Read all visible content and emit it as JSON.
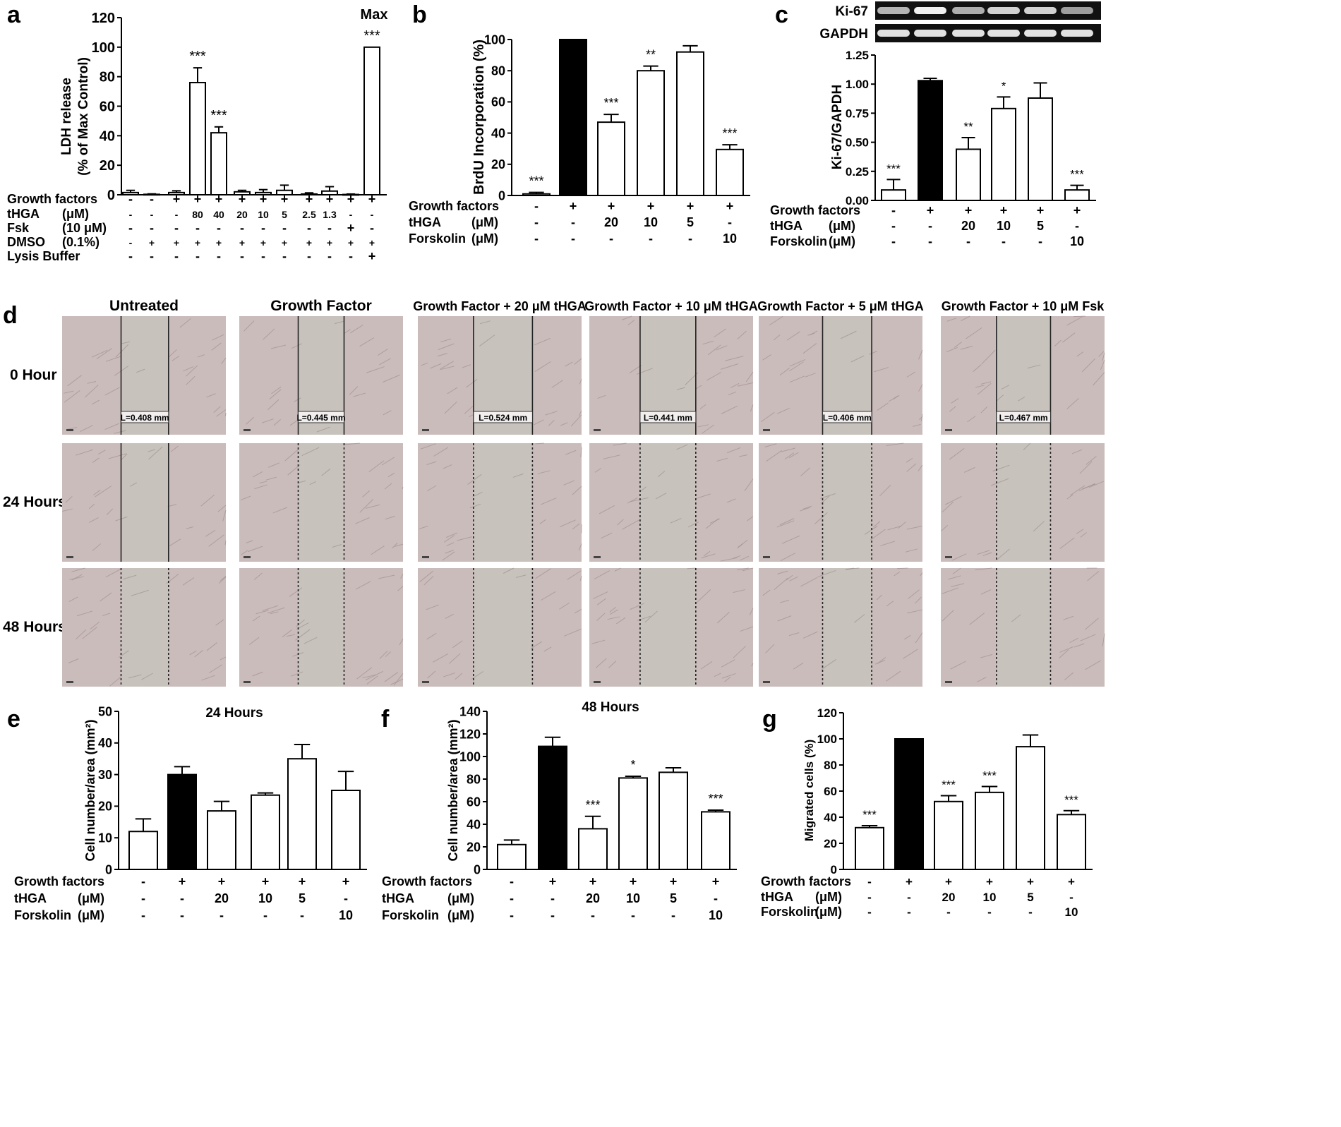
{
  "chart_data": [
    {
      "panel": "a",
      "type": "bar",
      "ylabel_lines": [
        "LDH release",
        "(% of Max Control)"
      ],
      "ylim": [
        0,
        120
      ],
      "yticks": [
        0,
        20,
        40,
        60,
        80,
        100,
        120
      ],
      "values": [
        1.5,
        0.3,
        1.5,
        76,
        42,
        2,
        1.5,
        3,
        0.5,
        2.5,
        0.2,
        100
      ],
      "errors": [
        1.5,
        0.3,
        1.2,
        10,
        4,
        1,
        2,
        3.5,
        0.8,
        3,
        0.3,
        0
      ],
      "fills": [
        "white",
        "white",
        "white",
        "white",
        "white",
        "white",
        "white",
        "white",
        "white",
        "white",
        "white",
        "white"
      ],
      "annotations": [
        "",
        "",
        "",
        "***",
        "***",
        "",
        "",
        "",
        "",
        "",
        "",
        "***"
      ],
      "extra_label": "Max",
      "rows": [
        {
          "label": "Growth factors",
          "unit": "",
          "cells": [
            "-",
            "-",
            "+",
            "+",
            "+",
            "+",
            "+",
            "+",
            "+",
            "+",
            "+",
            "+"
          ]
        },
        {
          "label": "tHGA",
          "unit": "(μM)",
          "cells": [
            "-",
            "-",
            "-",
            "80",
            "40",
            "20",
            "10",
            "5",
            "2.5",
            "1.3",
            "-",
            "-"
          ]
        },
        {
          "label": "Fsk",
          "unit": "(10 μM)",
          "cells": [
            "-",
            "-",
            "-",
            "-",
            "-",
            "-",
            "-",
            "-",
            "-",
            "-",
            "+",
            "-"
          ]
        },
        {
          "label": "DMSO",
          "unit": "(0.1%)",
          "cells": [
            "-",
            "+",
            "+",
            "+",
            "+",
            "+",
            "+",
            "+",
            "+",
            "+",
            "+",
            "+"
          ]
        },
        {
          "label": "Lysis Buffer",
          "unit": "",
          "cells": [
            "-",
            "-",
            "-",
            "-",
            "-",
            "-",
            "-",
            "-",
            "-",
            "-",
            "-",
            "+"
          ]
        }
      ]
    },
    {
      "panel": "b",
      "type": "bar",
      "ylabel_lines": [
        "BrdU Incorporation (%)"
      ],
      "ylim": [
        0,
        100
      ],
      "yticks": [
        0,
        20,
        40,
        60,
        80,
        100
      ],
      "values": [
        1,
        100,
        47,
        80,
        92,
        29.5
      ],
      "errors": [
        1,
        0,
        5,
        3,
        4,
        3
      ],
      "fills": [
        "white",
        "black",
        "white",
        "white",
        "white",
        "white"
      ],
      "annotations": [
        "***",
        "",
        "***",
        "**",
        "",
        "***"
      ],
      "rows": [
        {
          "label": "Growth factors",
          "unit": "",
          "cells": [
            "-",
            "+",
            "+",
            "+",
            "+",
            "+"
          ]
        },
        {
          "label": "tHGA",
          "unit": "(μM)",
          "cells": [
            "-",
            "-",
            "20",
            "10",
            "5",
            "-"
          ]
        },
        {
          "label": "Forskolin",
          "unit": "(μM)",
          "cells": [
            "-",
            "-",
            "-",
            "-",
            "-",
            "10"
          ]
        }
      ]
    },
    {
      "panel": "c",
      "type": "bar",
      "ylabel_lines": [
        "Ki-67/GAPDH"
      ],
      "ylim": [
        0,
        1.25
      ],
      "yticks": [
        "0.00",
        "0.25",
        "0.50",
        "0.75",
        "1.00",
        "1.25"
      ],
      "values": [
        0.09,
        1.03,
        0.44,
        0.79,
        0.88,
        0.09
      ],
      "errors": [
        0.09,
        0.02,
        0.1,
        0.1,
        0.13,
        0.04
      ],
      "fills": [
        "white",
        "black",
        "white",
        "white",
        "white",
        "white"
      ],
      "annotations": [
        "***",
        "",
        "**",
        "*",
        "",
        "***"
      ],
      "blots": [
        "Ki-67",
        "GAPDH"
      ],
      "rows": [
        {
          "label": "Growth factors",
          "unit": "",
          "cells": [
            "-",
            "+",
            "+",
            "+",
            "+",
            "+"
          ]
        },
        {
          "label": "tHGA",
          "unit": "(μM)",
          "cells": [
            "-",
            "-",
            "20",
            "10",
            "5",
            "-"
          ]
        },
        {
          "label": "Forskolin",
          "unit": "(μM)",
          "cells": [
            "-",
            "-",
            "-",
            "-",
            "-",
            "10"
          ]
        }
      ]
    },
    {
      "panel": "e",
      "type": "bar",
      "title": "24 Hours",
      "ylabel_lines": [
        "Cell number/area (mm²)"
      ],
      "ylim": [
        0,
        50
      ],
      "yticks": [
        0,
        10,
        20,
        30,
        40,
        50
      ],
      "values": [
        12,
        30,
        18.5,
        23.5,
        35,
        25
      ],
      "errors": [
        4,
        2.5,
        3,
        0.7,
        4.5,
        6
      ],
      "fills": [
        "white",
        "black",
        "white",
        "white",
        "white",
        "white"
      ],
      "annotations": [
        "",
        "",
        "",
        "",
        "",
        ""
      ],
      "rows": [
        {
          "label": "Growth factors",
          "unit": "",
          "cells": [
            "-",
            "+",
            "+",
            "+",
            "+",
            "+"
          ]
        },
        {
          "label": "tHGA",
          "unit": "(μM)",
          "cells": [
            "-",
            "-",
            "20",
            "10",
            "5",
            "-"
          ]
        },
        {
          "label": "Forskolin",
          "unit": "(μM)",
          "cells": [
            "-",
            "-",
            "-",
            "-",
            "-",
            "10"
          ]
        }
      ]
    },
    {
      "panel": "f",
      "type": "bar",
      "title": "48 Hours",
      "ylabel_lines": [
        "Cell number/area (mm²)"
      ],
      "ylim": [
        0,
        140
      ],
      "yticks": [
        0,
        20,
        40,
        60,
        80,
        100,
        120,
        140
      ],
      "values": [
        22,
        109,
        36,
        81,
        86,
        51
      ],
      "errors": [
        4,
        8,
        11,
        1.5,
        4,
        1.5
      ],
      "fills": [
        "white",
        "black",
        "white",
        "white",
        "white",
        "white"
      ],
      "annotations": [
        "",
        "",
        "***",
        "*",
        "",
        "***"
      ],
      "rows": [
        {
          "label": "Growth factors",
          "unit": "",
          "cells": [
            "-",
            "+",
            "+",
            "+",
            "+",
            "+"
          ]
        },
        {
          "label": "tHGA",
          "unit": "(μM)",
          "cells": [
            "-",
            "-",
            "20",
            "10",
            "5",
            "-"
          ]
        },
        {
          "label": "Forskolin",
          "unit": "(μM)",
          "cells": [
            "-",
            "-",
            "-",
            "-",
            "-",
            "10"
          ]
        }
      ]
    },
    {
      "panel": "g",
      "type": "bar",
      "ylabel_lines": [
        "Migrated cells (%)"
      ],
      "ylim": [
        0,
        120
      ],
      "yticks": [
        0,
        20,
        40,
        60,
        80,
        100,
        120
      ],
      "values": [
        32,
        100,
        52,
        59,
        94,
        42
      ],
      "errors": [
        1.5,
        0,
        4.5,
        4.5,
        9,
        3
      ],
      "fills": [
        "white",
        "black",
        "white",
        "white",
        "white",
        "white"
      ],
      "annotations": [
        "***",
        "",
        "***",
        "***",
        "",
        "***"
      ],
      "rows": [
        {
          "label": "Growth factors",
          "unit": "",
          "cells": [
            "-",
            "+",
            "+",
            "+",
            "+",
            "+"
          ]
        },
        {
          "label": "tHGA",
          "unit": "(μM)",
          "cells": [
            "-",
            "-",
            "20",
            "10",
            "5",
            "-"
          ]
        },
        {
          "label": "Forskolin",
          "unit": "(μM)",
          "cells": [
            "-",
            "-",
            "-",
            "-",
            "-",
            "10"
          ]
        }
      ]
    }
  ],
  "panel_d": {
    "letter": "d",
    "columns": [
      "Untreated",
      "Growth Factor",
      "Growth Factor + 20 μM tHGA",
      "Growth Factor + 10 μM tHGA",
      "Growth Factor + 5 μM tHGA",
      "Growth Factor + 10 μM Fsk"
    ],
    "rows": [
      "0 Hour",
      "24 Hours",
      "48 Hours"
    ],
    "widths": [
      "L=0.408 mm",
      "L=0.445 mm",
      "L=0.524 mm",
      "L=0.441 mm",
      "L=0.406 mm",
      "L=0.467 mm"
    ]
  },
  "colors": {
    "micrograph": "#cbbcbc",
    "gap": "#c7c2bc",
    "bar_dark": "#000000"
  }
}
